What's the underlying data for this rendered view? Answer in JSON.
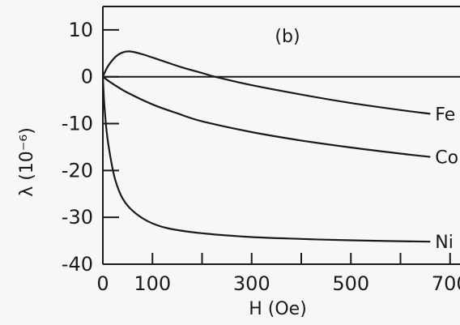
{
  "panel_label": "(b)",
  "chart_data": {
    "type": "line",
    "title": "",
    "xlabel": "H (Oe)",
    "ylabel": "λ (10⁻⁶)",
    "xlim": [
      0,
      720
    ],
    "ylim": [
      -40,
      15
    ],
    "grid": false,
    "legend": "inline labels at right end of curves",
    "x_ticks": [
      0,
      100,
      300,
      500,
      700
    ],
    "x_tick_labels": [
      "0",
      "100",
      "300",
      "500",
      "700"
    ],
    "x_minor_ticks": [
      200,
      400,
      600
    ],
    "y_ticks": [
      10,
      0,
      -10,
      -20,
      -30,
      -40
    ],
    "y_tick_labels": [
      "10",
      "0",
      "-10",
      "-20",
      "-30",
      "-40"
    ],
    "series": [
      {
        "name": "Fe",
        "x": [
          0,
          10,
          25,
          40,
          55,
          80,
          120,
          160,
          200,
          230,
          300,
          400,
          500,
          600,
          660
        ],
        "y": [
          0,
          2.2,
          4.2,
          5.2,
          5.4,
          4.8,
          3.4,
          2.0,
          0.8,
          -0.1,
          -1.8,
          -3.8,
          -5.6,
          -7.1,
          -7.9
        ]
      },
      {
        "name": "Co",
        "x": [
          0,
          20,
          50,
          100,
          150,
          200,
          300,
          400,
          500,
          600,
          660
        ],
        "y": [
          0,
          -1.5,
          -3.4,
          -5.9,
          -7.8,
          -9.5,
          -11.8,
          -13.6,
          -15.1,
          -16.4,
          -17.1
        ]
      },
      {
        "name": "Ni",
        "x": [
          0,
          3,
          8,
          15,
          25,
          40,
          60,
          90,
          130,
          200,
          300,
          400,
          500,
          660
        ],
        "y": [
          0,
          -6,
          -12,
          -17,
          -22,
          -26,
          -28.6,
          -30.8,
          -32.3,
          -33.4,
          -34.2,
          -34.6,
          -34.9,
          -35.2
        ]
      }
    ]
  }
}
